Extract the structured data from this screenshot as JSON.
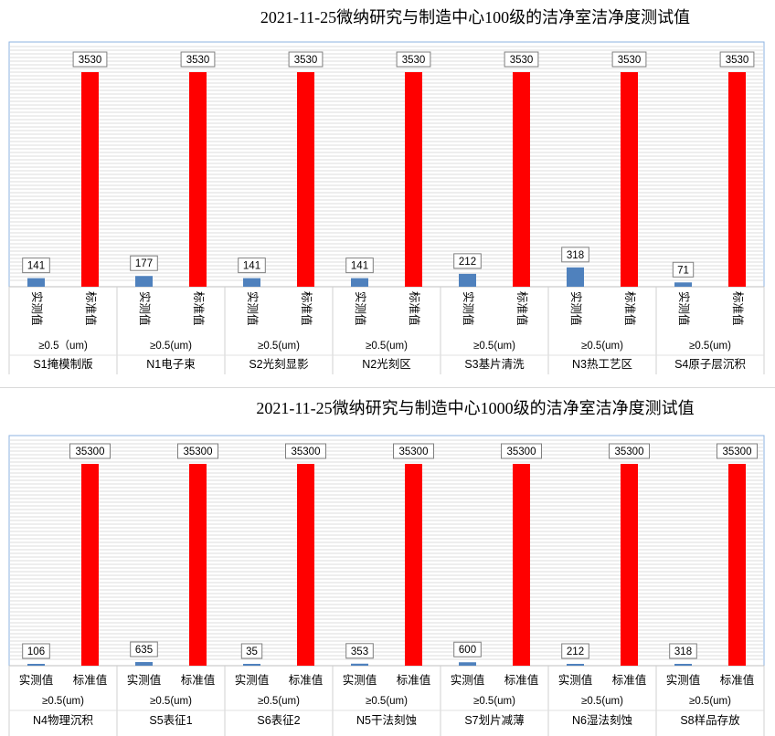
{
  "chart_data": [
    {
      "type": "bar",
      "title": "2021-11-25微纳研究与制造中心100级的洁净室洁净度测试值",
      "series_labels": [
        "实测值",
        "标准值"
      ],
      "colors": {
        "measured": "#4f81bd",
        "standard": "#ff0000"
      },
      "categories": [
        {
          "size": "≥0.5（um)",
          "name": "S1掩模制版",
          "measured": 141,
          "standard": 3530
        },
        {
          "size": "≥0.5(um)",
          "name": "N1电子束",
          "measured": 177,
          "standard": 3530
        },
        {
          "size": "≥0.5(um)",
          "name": "S2光刻显影",
          "measured": 141,
          "standard": 3530
        },
        {
          "size": "≥0.5(um)",
          "name": "N2光刻区",
          "measured": 141,
          "standard": 3530
        },
        {
          "size": "≥0.5(um)",
          "name": "S3基片清洗",
          "measured": 212,
          "standard": 3530
        },
        {
          "size": "≥0.5(um)",
          "name": "N3热工艺区",
          "measured": 318,
          "standard": 3530
        },
        {
          "size": "≥0.5(um)",
          "name": "S4原子层沉积",
          "measured": 71,
          "standard": 3530
        }
      ],
      "ylim": [
        0,
        3530
      ]
    },
    {
      "type": "bar",
      "title": "2021-11-25微纳研究与制造中心1000级的洁净室洁净度测试值",
      "series_labels": [
        "实测值",
        "标准值"
      ],
      "colors": {
        "measured": "#4f81bd",
        "standard": "#ff0000"
      },
      "categories": [
        {
          "size": "≥0.5(um)",
          "name": "N4物理沉积",
          "measured": 106,
          "standard": 35300
        },
        {
          "size": "≥0.5(um)",
          "name": "S5表征1",
          "measured": 635,
          "standard": 35300
        },
        {
          "size": "≥0.5(um)",
          "name": "S6表征2",
          "measured": 35,
          "standard": 35300
        },
        {
          "size": "≥0.5(um)",
          "name": "N5干法刻蚀",
          "measured": 353,
          "standard": 35300
        },
        {
          "size": "≥0.5(um)",
          "name": "S7划片减薄",
          "measured": 600,
          "standard": 35300
        },
        {
          "size": "≥0.5(um)",
          "name": "N6湿法刻蚀",
          "measured": 212,
          "standard": 35300
        },
        {
          "size": "≥0.5(um)",
          "name": "S8样品存放",
          "measured": 318,
          "standard": 35300
        }
      ],
      "ylim": [
        0,
        35300
      ]
    }
  ]
}
